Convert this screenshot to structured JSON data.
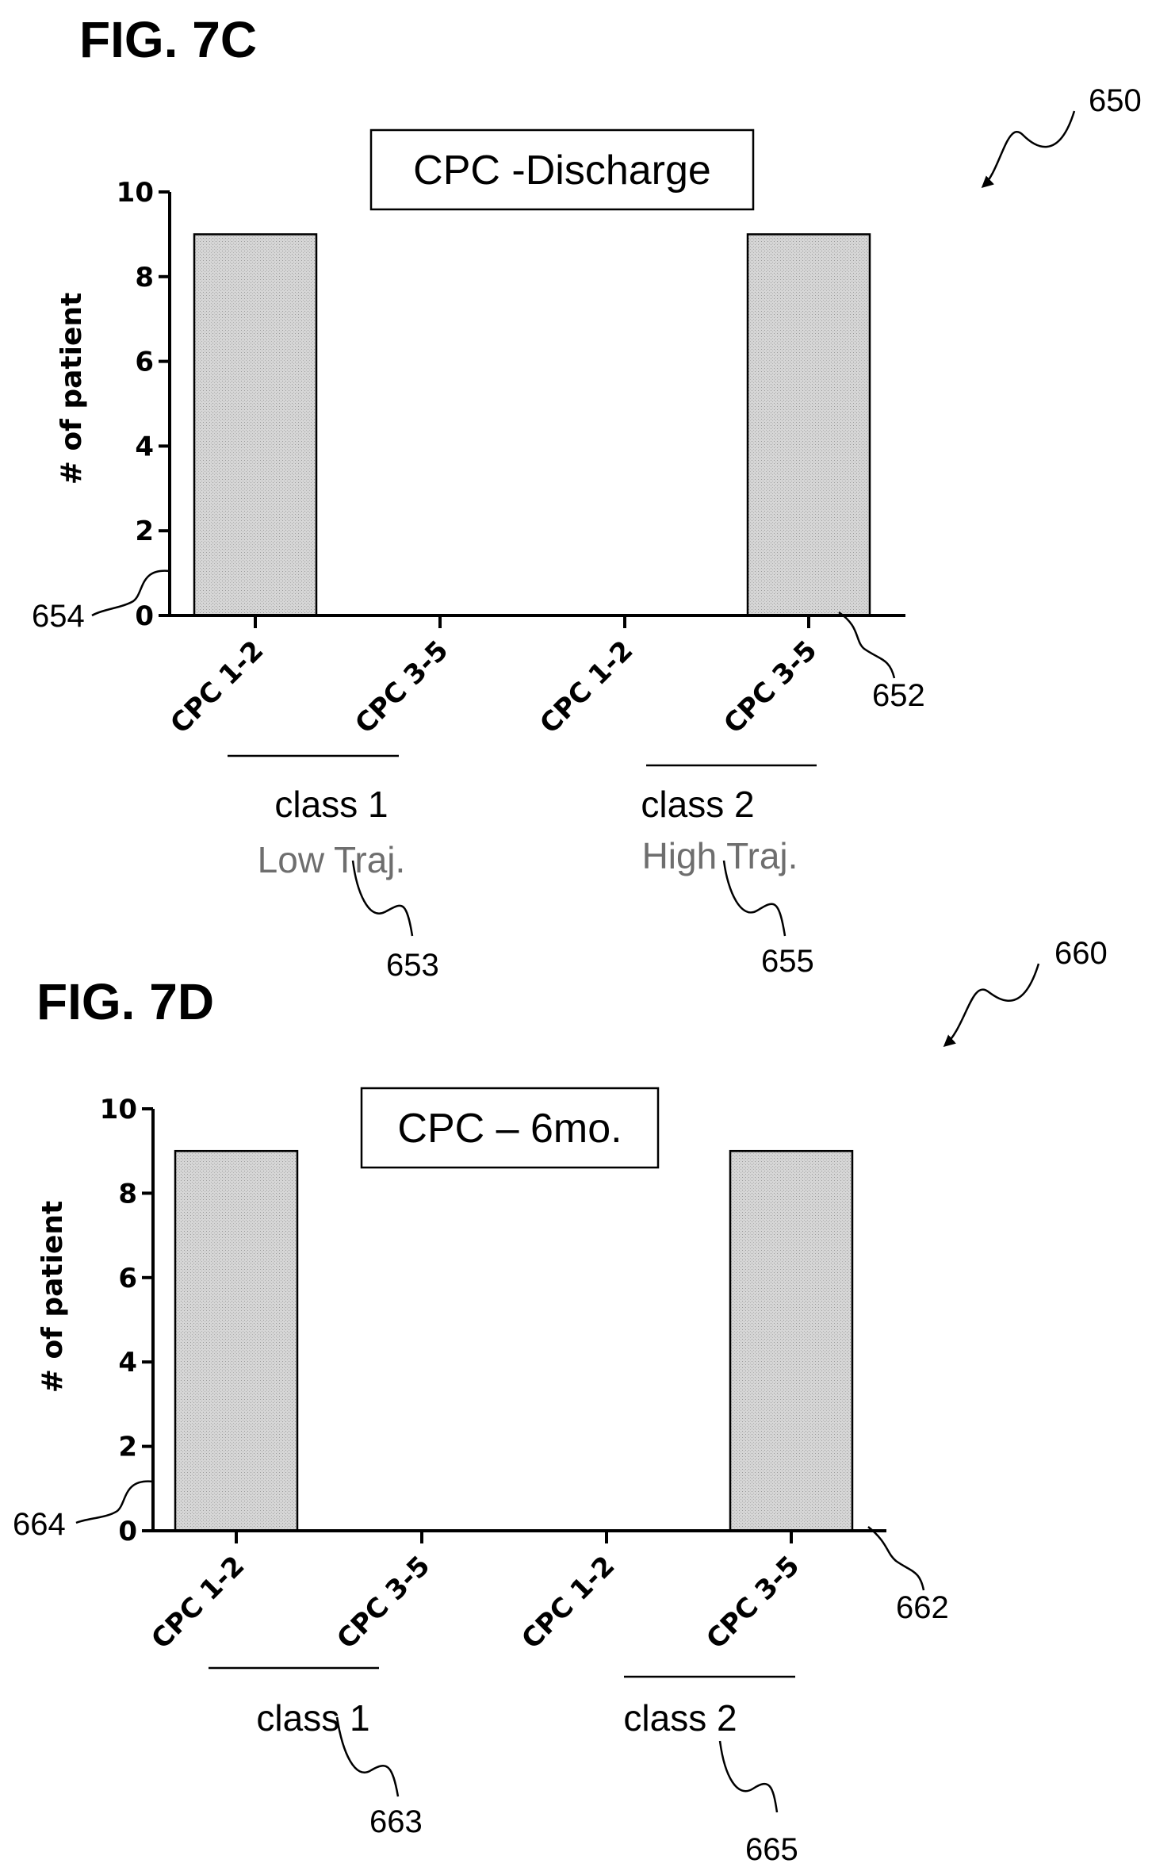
{
  "figures": [
    {
      "label": "FIG. 7C",
      "ref_figure": "650",
      "ref_leader_y": "654",
      "ref_leader_x": "652",
      "ref_group1": "653",
      "ref_group2": "655",
      "group_labels": [
        {
          "label": "class 1",
          "sub": "Low Traj."
        },
        {
          "label": "class 2",
          "sub": "High Traj."
        }
      ]
    },
    {
      "label": "FIG. 7D",
      "ref_figure": "660",
      "ref_leader_y": "664",
      "ref_leader_x": "662",
      "ref_group1": "663",
      "ref_group2": "665",
      "group_labels": [
        {
          "label": "class 1",
          "sub": ""
        },
        {
          "label": "class 2",
          "sub": ""
        }
      ]
    }
  ],
  "colors": {
    "bar_fill": "#d4d4d4",
    "axis": "#000000",
    "sub_label": "#6e6e6e"
  },
  "chart_data": [
    {
      "type": "bar",
      "title": "CPC -Discharge",
      "ylabel": "# of patient",
      "xlabel": "",
      "categories": [
        "CPC 1-2",
        "CPC 3-5",
        "CPC 1-2",
        "CPC 3-5"
      ],
      "values": [
        9,
        0,
        0,
        9
      ],
      "ylim": [
        0,
        10
      ],
      "yticks": [
        0,
        2,
        4,
        6,
        8,
        10
      ],
      "grid": false
    },
    {
      "type": "bar",
      "title": "CPC – 6mo.",
      "ylabel": "# of patient",
      "xlabel": "",
      "categories": [
        "CPC 1-2",
        "CPC 3-5",
        "CPC 1-2",
        "CPC 3-5"
      ],
      "values": [
        9,
        0,
        0,
        9
      ],
      "ylim": [
        0,
        10
      ],
      "yticks": [
        0,
        2,
        4,
        6,
        8,
        10
      ],
      "grid": false
    }
  ]
}
